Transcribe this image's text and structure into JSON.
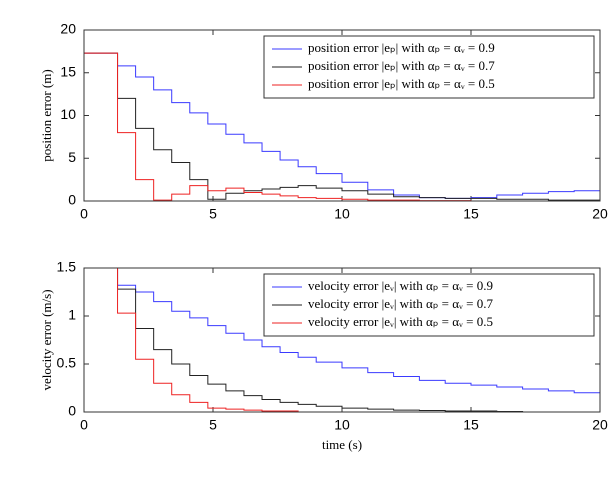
{
  "chart_data": [
    {
      "type": "line",
      "step": true,
      "ylabel": "position error (m)",
      "x": [
        0,
        1.3,
        2,
        2.7,
        3.4,
        4.1,
        4.8,
        5.5,
        6.2,
        6.9,
        7.6,
        8.3,
        9,
        10,
        11,
        12,
        13,
        14,
        15,
        16,
        17,
        18,
        19,
        20
      ],
      "series": [
        {
          "name": "position error |eₚ| with αₚ = αᵥ = 0.9",
          "color": "#3a3aff",
          "values": [
            17.3,
            15.8,
            14.5,
            13,
            11.5,
            10.3,
            9,
            7.8,
            6.8,
            5.8,
            4.8,
            4,
            3.2,
            2.2,
            1.3,
            0.7,
            0.4,
            0.3,
            0.4,
            0.7,
            0.9,
            1.1,
            1.2,
            1.3
          ]
        },
        {
          "name": "position error |eₚ| with αₚ = αᵥ = 0.7",
          "color": "#222222",
          "values": [
            17.3,
            12,
            8.5,
            6,
            4.5,
            2.5,
            0.2,
            0.9,
            1.2,
            1.4,
            1.6,
            1.8,
            1.5,
            1.2,
            0.8,
            0.5,
            0.4,
            0.3,
            0.3,
            0.2,
            0.2,
            0.1,
            0.1,
            0.1
          ]
        },
        {
          "name": "position error |eₚ| with αₚ = αᵥ = 0.5",
          "color": "#ee2222",
          "values": [
            17.3,
            8,
            2.5,
            0.1,
            0.8,
            1.8,
            1.2,
            1.5,
            1,
            0.8,
            0.6,
            0.4,
            0.3,
            0.2,
            0.1,
            0.1,
            0.05,
            0.05,
            0,
            0,
            0,
            0,
            0,
            0
          ]
        }
      ],
      "xlim": [
        0,
        20
      ],
      "xticks": [
        0,
        5,
        10,
        15,
        20
      ],
      "ylim": [
        0,
        20
      ],
      "yticks": [
        0,
        5,
        10,
        15,
        20
      ],
      "legend": "top-right"
    },
    {
      "type": "line",
      "step": true,
      "ylabel": "velocity error (m/s)",
      "xlabel": "time (s)",
      "x": [
        0,
        1.3,
        2,
        2.7,
        3.4,
        4.1,
        4.8,
        5.5,
        6.2,
        6.9,
        7.6,
        8.3,
        9,
        10,
        11,
        12,
        13,
        14,
        15,
        16,
        17,
        18,
        19,
        20
      ],
      "series": [
        {
          "name": "velocity error |eᵥ| with αₚ = αᵥ = 0.9",
          "color": "#3a3aff",
          "values": [
            1.5,
            1.32,
            1.25,
            1.15,
            1.05,
            0.98,
            0.9,
            0.82,
            0.75,
            0.68,
            0.62,
            0.57,
            0.52,
            0.46,
            0.41,
            0.37,
            0.33,
            0.3,
            0.28,
            0.26,
            0.24,
            0.22,
            0.2,
            0.19
          ]
        },
        {
          "name": "velocity error |eᵥ| with αₚ = αᵥ = 0.7",
          "color": "#222222",
          "values": [
            1.5,
            1.28,
            0.87,
            0.65,
            0.5,
            0.38,
            0.29,
            0.22,
            0.17,
            0.13,
            0.1,
            0.08,
            0.06,
            0.04,
            0.03,
            0.02,
            0.015,
            0.01,
            0.01,
            0.005,
            0,
            0,
            0,
            0
          ]
        },
        {
          "name": "velocity error |eᵥ| with αₚ = αᵥ = 0.5",
          "color": "#ee2222",
          "values": [
            1.5,
            1.03,
            0.55,
            0.3,
            0.18,
            0.1,
            0.04,
            0.03,
            0.02,
            0.01,
            0.01,
            0,
            0,
            0,
            0,
            0,
            0,
            0,
            0,
            0,
            0,
            0,
            0,
            0
          ]
        }
      ],
      "xlim": [
        0,
        20
      ],
      "xticks": [
        0,
        5,
        10,
        15,
        20
      ],
      "ylim": [
        0,
        1.5
      ],
      "yticks": [
        0,
        0.5,
        1,
        1.5
      ],
      "legend": "top-right"
    }
  ]
}
